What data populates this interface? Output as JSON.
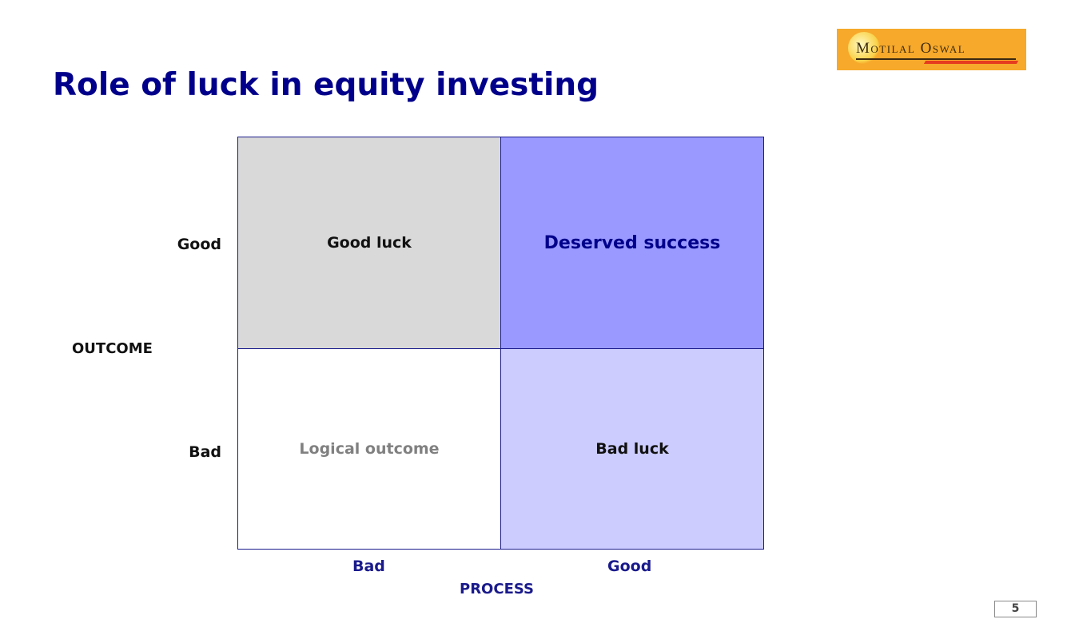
{
  "title": "Role of luck in equity investing",
  "logo": {
    "text": "Motilal Oswal",
    "colors": {
      "background": "#f7a92b",
      "accent": "#e53b1e"
    }
  },
  "matrix": {
    "y_axis": {
      "title": "OUTCOME",
      "labels": [
        "Good",
        "Bad"
      ]
    },
    "x_axis": {
      "title": "PROCESS",
      "labels": [
        "Bad",
        "Good"
      ]
    },
    "quadrants": [
      {
        "outcome": "Good",
        "process": "Bad",
        "label": "Good luck",
        "color": "#d9d9d9"
      },
      {
        "outcome": "Good",
        "process": "Good",
        "label": "Deserved success",
        "color": "#9999ff"
      },
      {
        "outcome": "Bad",
        "process": "Bad",
        "label": "Logical outcome",
        "color": "#ffffff"
      },
      {
        "outcome": "Bad",
        "process": "Good",
        "label": "Bad luck",
        "color": "#ccccff"
      }
    ]
  },
  "page_number": "5"
}
